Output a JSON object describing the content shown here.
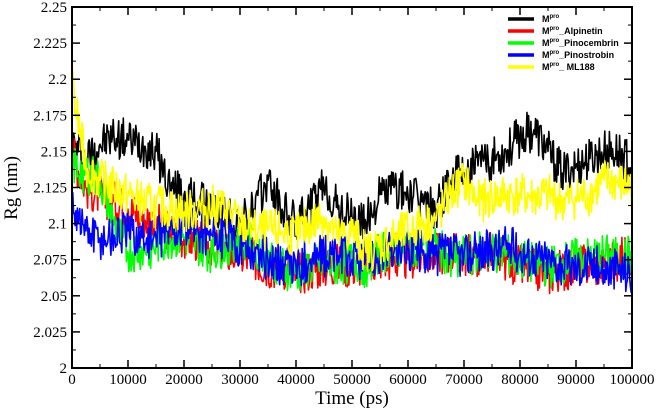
{
  "chart_data": {
    "type": "line",
    "title": "",
    "xlabel": "Time (ps)",
    "ylabel": "Rg (nm)",
    "xlim": [
      0,
      100000
    ],
    "ylim": [
      2,
      2.25
    ],
    "grid": false,
    "legend_position": "top-right",
    "x_ticks": [
      0,
      10000,
      20000,
      30000,
      40000,
      50000,
      60000,
      70000,
      80000,
      90000,
      100000
    ],
    "x_tick_labels": [
      "0",
      "10000",
      "20000",
      "30000",
      "40000",
      "50000",
      "60000",
      "70000",
      "80000",
      "90000",
      "100000"
    ],
    "y_ticks": [
      2,
      2.025,
      2.05,
      2.075,
      2.1,
      2.125,
      2.15,
      2.175,
      2.2,
      2.225,
      2.25
    ],
    "y_tick_labels": [
      "2",
      "2.025",
      "2.05",
      "2.075",
      "2.1",
      "2.125",
      "2.15",
      "2.175",
      "2.2",
      "2.225",
      "2.25"
    ],
    "x": [
      0,
      2500,
      5000,
      7500,
      10000,
      12500,
      15000,
      17500,
      20000,
      22500,
      25000,
      27500,
      30000,
      32500,
      35000,
      37500,
      40000,
      42500,
      45000,
      47500,
      50000,
      52500,
      55000,
      57500,
      60000,
      62500,
      65000,
      67500,
      70000,
      72500,
      75000,
      77500,
      80000,
      82500,
      85000,
      87500,
      90000,
      92500,
      95000,
      97500,
      100000
    ],
    "series": [
      {
        "name": "Mpro",
        "label_base": "M",
        "label_sup": "pro",
        "label_suffix": "",
        "color": "#000000",
        "values": [
          2.155,
          2.145,
          2.155,
          2.16,
          2.158,
          2.155,
          2.15,
          2.125,
          2.12,
          2.115,
          2.11,
          2.105,
          2.1,
          2.11,
          2.13,
          2.11,
          2.1,
          2.11,
          2.125,
          2.11,
          2.105,
          2.1,
          2.12,
          2.125,
          2.12,
          2.115,
          2.11,
          2.13,
          2.135,
          2.14,
          2.145,
          2.15,
          2.16,
          2.165,
          2.15,
          2.135,
          2.14,
          2.145,
          2.15,
          2.15,
          2.14
        ]
      },
      {
        "name": "Mpro_Alpinetin",
        "label_base": "M",
        "label_sup": "pro",
        "label_suffix": "_Alpinetin",
        "color": "#ff0000",
        "values": [
          2.15,
          2.125,
          2.12,
          2.115,
          2.11,
          2.105,
          2.1,
          2.095,
          2.09,
          2.088,
          2.085,
          2.08,
          2.078,
          2.075,
          2.07,
          2.07,
          2.065,
          2.068,
          2.07,
          2.072,
          2.07,
          2.072,
          2.075,
          2.075,
          2.075,
          2.078,
          2.08,
          2.08,
          2.078,
          2.078,
          2.08,
          2.075,
          2.07,
          2.068,
          2.065,
          2.068,
          2.07,
          2.072,
          2.07,
          2.075,
          2.08
        ]
      },
      {
        "name": "Mpro_Pinocembrin",
        "label_base": "M",
        "label_sup": "pro",
        "label_suffix": "_Pinocembrin",
        "color": "#00ff00",
        "values": [
          2.14,
          2.135,
          2.13,
          2.1,
          2.08,
          2.082,
          2.085,
          2.09,
          2.09,
          2.085,
          2.08,
          2.085,
          2.09,
          2.085,
          2.078,
          2.07,
          2.065,
          2.07,
          2.072,
          2.07,
          2.075,
          2.07,
          2.08,
          2.082,
          2.085,
          2.085,
          2.082,
          2.078,
          2.078,
          2.08,
          2.08,
          2.078,
          2.075,
          2.072,
          2.07,
          2.072,
          2.075,
          2.075,
          2.078,
          2.075,
          2.078
        ]
      },
      {
        "name": "Mpro_Pinostrobin",
        "label_base": "M",
        "label_sup": "pro",
        "label_suffix": "_Pinostrobin",
        "color": "#0000ff",
        "values": [
          2.115,
          2.095,
          2.09,
          2.092,
          2.095,
          2.09,
          2.09,
          2.095,
          2.098,
          2.095,
          2.092,
          2.09,
          2.085,
          2.08,
          2.075,
          2.072,
          2.07,
          2.075,
          2.078,
          2.078,
          2.075,
          2.075,
          2.08,
          2.08,
          2.082,
          2.08,
          2.078,
          2.08,
          2.078,
          2.08,
          2.082,
          2.085,
          2.08,
          2.078,
          2.075,
          2.072,
          2.07,
          2.072,
          2.068,
          2.07,
          2.065
        ]
      },
      {
        "name": "Mpro_ ML188",
        "label_base": "M",
        "label_sup": "pro",
        "label_suffix": "_ ML188",
        "color": "#ffff00",
        "values": [
          2.195,
          2.14,
          2.13,
          2.125,
          2.12,
          2.115,
          2.112,
          2.11,
          2.108,
          2.11,
          2.112,
          2.11,
          2.1,
          2.095,
          2.095,
          2.095,
          2.092,
          2.1,
          2.105,
          2.09,
          2.095,
          2.08,
          2.085,
          2.09,
          2.095,
          2.1,
          2.102,
          2.12,
          2.13,
          2.115,
          2.118,
          2.12,
          2.12,
          2.118,
          2.12,
          2.115,
          2.118,
          2.12,
          2.13,
          2.128,
          2.125
        ]
      }
    ]
  }
}
